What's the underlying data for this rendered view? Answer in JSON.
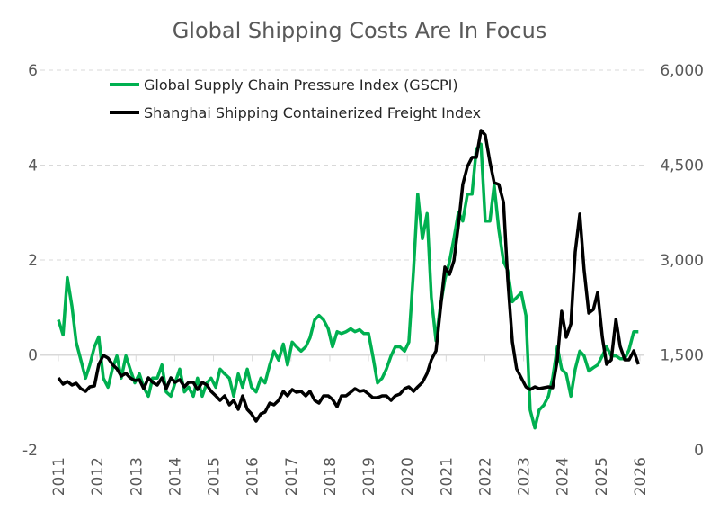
{
  "chart_data": {
    "type": "line",
    "title": "Global Shipping Costs Are In Focus",
    "xlabel": "",
    "ylabel": "",
    "y2label": "",
    "xlim": [
      2011,
      2026
    ],
    "ylim": [
      -2,
      6
    ],
    "y2lim": [
      0,
      6000
    ],
    "x_ticks": [
      "2011",
      "2012",
      "2013",
      "2014",
      "2015",
      "2016",
      "2017",
      "2018",
      "2019",
      "2020",
      "2021",
      "2022",
      "2023",
      "2024",
      "2025",
      "2026"
    ],
    "y_ticks": [
      "-2",
      "0",
      "2",
      "4",
      "6"
    ],
    "y2_ticks": [
      "0",
      "1,500",
      "3,000",
      "4,500",
      "6,000"
    ],
    "grid": "horizontal dashed",
    "legend_position": "top",
    "x": [
      2011.0,
      2011.12,
      2011.23,
      2011.35,
      2011.46,
      2011.58,
      2011.7,
      2011.81,
      2011.93,
      2012.04,
      2012.16,
      2012.28,
      2012.39,
      2012.51,
      2012.62,
      2012.74,
      2012.85,
      2012.97,
      2013.09,
      2013.2,
      2013.32,
      2013.43,
      2013.55,
      2013.67,
      2013.78,
      2013.9,
      2014.01,
      2014.13,
      2014.25,
      2014.36,
      2014.48,
      2014.59,
      2014.71,
      2014.83,
      2014.94,
      2015.06,
      2015.17,
      2015.29,
      2015.41,
      2015.52,
      2015.64,
      2015.75,
      2015.87,
      2015.98,
      2016.1,
      2016.22,
      2016.33,
      2016.45,
      2016.56,
      2016.68,
      2016.8,
      2016.91,
      2017.03,
      2017.14,
      2017.26,
      2017.38,
      2017.49,
      2017.61,
      2017.72,
      2017.84,
      2017.96,
      2018.07,
      2018.19,
      2018.3,
      2018.42,
      2018.54,
      2018.65,
      2018.77,
      2018.88,
      2019.0,
      2019.11,
      2019.23,
      2019.35,
      2019.46,
      2019.58,
      2019.69,
      2019.81,
      2019.93,
      2020.04,
      2020.16,
      2020.27,
      2020.39,
      2020.51,
      2020.62,
      2020.74,
      2020.85,
      2020.97,
      2021.09,
      2021.2,
      2021.32,
      2021.43,
      2021.55,
      2021.67,
      2021.78,
      2021.9,
      2022.01,
      2022.13,
      2022.24,
      2022.36,
      2022.48,
      2022.59,
      2022.71,
      2022.82,
      2022.94,
      2023.06,
      2023.17,
      2023.29,
      2023.4,
      2023.52,
      2023.64,
      2023.75,
      2023.87,
      2023.98,
      2024.1,
      2024.22,
      2024.33,
      2024.45,
      2024.56,
      2024.68,
      2024.8,
      2024.91,
      2025.03,
      2025.14,
      2025.26,
      2025.38,
      2025.49,
      2025.61,
      2025.72,
      2025.84,
      2025.96
    ],
    "series": [
      {
        "name": "Global Supply Chain Pressure Index (GSCPI)",
        "axis": "left",
        "color": "#00b050",
        "values": [
          0.74,
          0.42,
          1.63,
          1.02,
          0.27,
          -0.11,
          -0.49,
          -0.21,
          0.17,
          0.38,
          -0.49,
          -0.68,
          -0.3,
          -0.02,
          -0.49,
          -0.02,
          -0.3,
          -0.59,
          -0.4,
          -0.68,
          -0.87,
          -0.49,
          -0.49,
          -0.21,
          -0.78,
          -0.87,
          -0.59,
          -0.3,
          -0.78,
          -0.68,
          -0.87,
          -0.49,
          -0.87,
          -0.59,
          -0.49,
          -0.68,
          -0.3,
          -0.4,
          -0.49,
          -0.87,
          -0.4,
          -0.68,
          -0.3,
          -0.68,
          -0.78,
          -0.49,
          -0.59,
          -0.21,
          0.08,
          -0.11,
          0.23,
          -0.21,
          0.27,
          0.17,
          0.08,
          0.17,
          0.36,
          0.74,
          0.83,
          0.74,
          0.55,
          0.17,
          0.49,
          0.45,
          0.49,
          0.55,
          0.49,
          0.53,
          0.45,
          0.45,
          -0.02,
          -0.59,
          -0.49,
          -0.3,
          -0.02,
          0.17,
          0.17,
          0.08,
          0.27,
          1.78,
          3.39,
          2.45,
          2.98,
          1.21,
          0.3,
          1.02,
          1.59,
          1.97,
          2.45,
          3.01,
          2.82,
          3.39,
          3.39,
          4.34,
          4.44,
          2.82,
          2.82,
          3.58,
          2.64,
          1.97,
          1.78,
          1.12,
          1.21,
          1.31,
          0.83,
          -1.16,
          -1.54,
          -1.16,
          -1.06,
          -0.87,
          -0.49,
          0.17,
          -0.3,
          -0.4,
          -0.87,
          -0.3,
          0.08,
          -0.02,
          -0.34,
          -0.27,
          -0.21,
          -0.02,
          0.17,
          -0.02,
          -0.02,
          -0.08,
          -0.08,
          0.11,
          0.49,
          0.49
        ]
      },
      {
        "name": "Shanghai Shipping Containerized Freight Index",
        "axis": "right",
        "color": "#000000",
        "values": [
          1138,
          1038,
          1081,
          1024,
          1052,
          967,
          924,
          995,
          1010,
          1351,
          1493,
          1450,
          1351,
          1280,
          1166,
          1209,
          1138,
          1095,
          1109,
          967,
          1138,
          1067,
          1024,
          1138,
          967,
          1138,
          1067,
          1109,
          995,
          1067,
          1067,
          953,
          1067,
          1024,
          924,
          853,
          782,
          853,
          711,
          782,
          640,
          853,
          640,
          569,
          455,
          569,
          597,
          739,
          711,
          782,
          924,
          853,
          953,
          910,
          924,
          853,
          924,
          782,
          739,
          853,
          853,
          796,
          683,
          853,
          853,
          910,
          967,
          924,
          939,
          882,
          825,
          825,
          853,
          853,
          782,
          853,
          882,
          967,
          995,
          924,
          995,
          1067,
          1209,
          1422,
          1564,
          2204,
          2887,
          2773,
          2986,
          3555,
          4195,
          4479,
          4622,
          4622,
          5048,
          4977,
          4550,
          4223,
          4195,
          3911,
          2702,
          1706,
          1280,
          1138,
          995,
          953,
          995,
          967,
          981,
          995,
          981,
          1422,
          2190,
          1778,
          1991,
          3128,
          3726,
          2844,
          2161,
          2218,
          2489,
          1778,
          1351,
          1422,
          2062,
          1635,
          1422,
          1422,
          1564,
          1351
        ]
      }
    ]
  }
}
